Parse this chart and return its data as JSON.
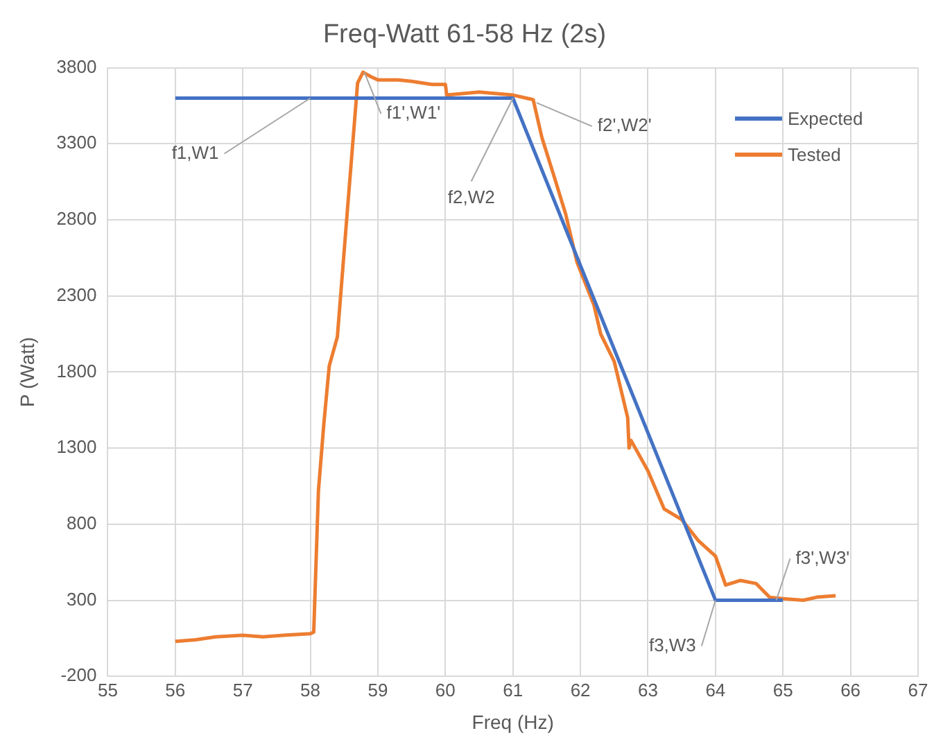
{
  "chart_data": {
    "type": "line",
    "title": "Freq-Watt 61-58 Hz (2s)",
    "xlabel": "Freq (Hz)",
    "ylabel": "P (Watt)",
    "xlim": [
      55,
      67
    ],
    "xticks": [
      55,
      56,
      57,
      58,
      59,
      60,
      61,
      62,
      63,
      64,
      65,
      66,
      67
    ],
    "ylim": [
      -200,
      3800
    ],
    "yticks": [
      -200,
      300,
      800,
      1300,
      1800,
      2300,
      2800,
      3300,
      3800
    ],
    "grid": true,
    "legend": "top right",
    "marker": "none",
    "line_style": "solid",
    "series": [
      {
        "name": "Expected",
        "color": "#4472c4",
        "x": [
          56,
          61,
          64,
          65
        ],
        "values": [
          3600,
          3600,
          300,
          300
        ]
      },
      {
        "name": "Tested",
        "color": "#ed7d31",
        "x": [
          56,
          56.3,
          56.6,
          57,
          57.3,
          57.6,
          58,
          58.05,
          58.12,
          58.2,
          58.28,
          58.4,
          58.55,
          58.7,
          58.78,
          58.9,
          59,
          59.3,
          59.5,
          59.8,
          60,
          60.02,
          60.5,
          61,
          61.2,
          61.3,
          61.43,
          61.6,
          61.78,
          61.95,
          62.2,
          62.3,
          62.5,
          62.7,
          62.72,
          62.75,
          63,
          63.24,
          63.5,
          63.75,
          64,
          64.15,
          64.37,
          64.6,
          64.8,
          65,
          65.3,
          65.5,
          65.78
        ],
        "values": [
          30,
          40,
          60,
          70,
          60,
          70,
          80,
          90,
          1020,
          1460,
          1840,
          2030,
          2870,
          3700,
          3770,
          3740,
          3720,
          3720,
          3710,
          3690,
          3690,
          3620,
          3640,
          3620,
          3600,
          3590,
          3340,
          3100,
          2840,
          2520,
          2240,
          2050,
          1870,
          1500,
          1300,
          1350,
          1150,
          900,
          830,
          690,
          590,
          400,
          430,
          410,
          320,
          310,
          300,
          320,
          330
        ]
      }
    ],
    "annotations": [
      {
        "text": "f1,W1",
        "x": 58,
        "y": 3600
      },
      {
        "text": "f1',W1'",
        "x": 58.8,
        "y": 3770
      },
      {
        "text": "f2,W2",
        "x": 61,
        "y": 3600
      },
      {
        "text": "f2',W2'",
        "x": 61.35,
        "y": 3570
      },
      {
        "text": "f3,W3",
        "x": 64,
        "y": 300
      },
      {
        "text": "f3',W3'",
        "x": 64.9,
        "y": 300
      }
    ]
  }
}
